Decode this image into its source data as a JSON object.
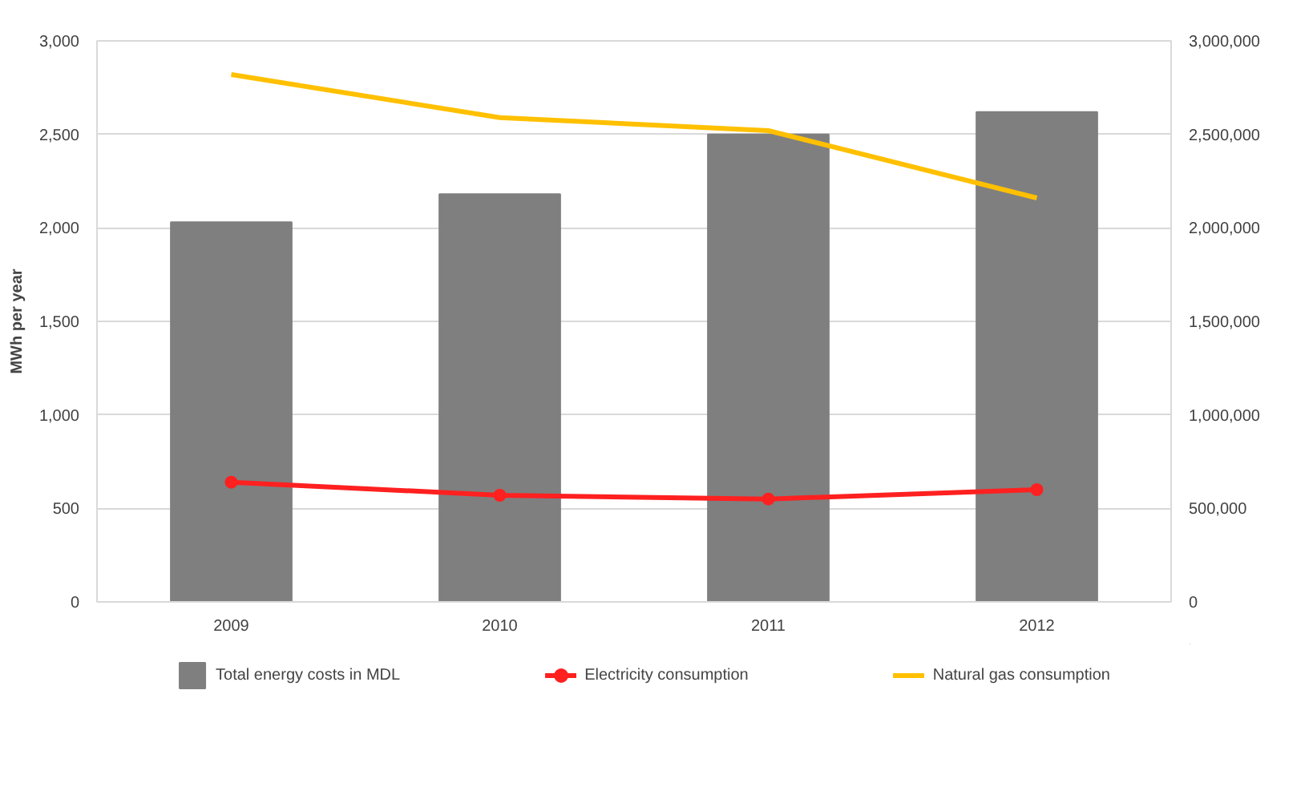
{
  "chart_data": {
    "type": "bar",
    "categories": [
      "2009",
      "2010",
      "2011",
      "2012"
    ],
    "ylabel": "MWh per year",
    "ylim": [
      0,
      3000
    ],
    "yticks": [
      {
        "value": 0,
        "label": "0"
      },
      {
        "value": 500,
        "label": "500"
      },
      {
        "value": 1000,
        "label": "1,000"
      },
      {
        "value": 1500,
        "label": "1,500"
      },
      {
        "value": 2000,
        "label": "2,000"
      },
      {
        "value": 2500,
        "label": "2,500"
      },
      {
        "value": 3000,
        "label": "3,000"
      }
    ],
    "y2lim": [
      0,
      3000000
    ],
    "y2ticks": [
      {
        "value": 0,
        "label": "0"
      },
      {
        "value": 500000,
        "label": "500,000"
      },
      {
        "value": 1000000,
        "label": "1,000,000"
      },
      {
        "value": 1500000,
        "label": "1,500,000"
      },
      {
        "value": 2000000,
        "label": "2,000,000"
      },
      {
        "value": 2500000,
        "label": "2,500,000"
      },
      {
        "value": 3000000,
        "label": "3,000,000"
      }
    ],
    "grid": "y",
    "legend": "bottom",
    "series": [
      {
        "name": "Total energy costs in MDL",
        "axis": "y2",
        "color": "#7f7f7f",
        "values": [
          2030000,
          2180000,
          2500000,
          2620000
        ]
      },
      {
        "name": "Electricity consumption",
        "type": "line",
        "marker": "circle",
        "color": "#ff2020",
        "values": [
          640,
          570,
          550,
          600
        ]
      },
      {
        "name": "Natural gas consumption",
        "type": "line",
        "marker": "none",
        "color": "#ffc000",
        "values": [
          2820,
          2590,
          2520,
          2160
        ]
      }
    ]
  }
}
